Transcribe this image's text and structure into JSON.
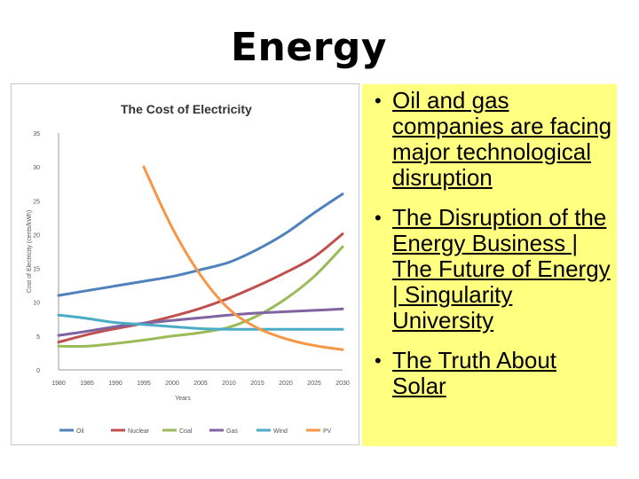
{
  "slide": {
    "title": "Energy",
    "bullets": [
      {
        "text": "Oil and gas companies are facing major technological disruption"
      },
      {
        "text": "The Disruption of the Energy Business | The Future of Energy | Singularity University"
      },
      {
        "text": "The Truth About Solar"
      }
    ]
  },
  "chart_data": {
    "type": "line",
    "title": "The Cost of Electricity",
    "xlabel": "Years",
    "ylabel": "Cost of Electricity (cents/kWh)",
    "x": [
      1980,
      1985,
      1990,
      1995,
      2000,
      2005,
      2010,
      2015,
      2020,
      2025,
      2030
    ],
    "ylim": [
      0,
      35
    ],
    "yticks": [
      0,
      5,
      10,
      15,
      20,
      25,
      30,
      35
    ],
    "grid": false,
    "legend_position": "bottom",
    "series": [
      {
        "name": "Oil",
        "color": "#4f81bd",
        "x": [
          1980,
          1985,
          1990,
          1995,
          2000,
          2005,
          2010,
          2015,
          2020,
          2025,
          2030
        ],
        "values": [
          11,
          11.7,
          12.4,
          13.1,
          13.8,
          14.8,
          15.9,
          17.8,
          20.2,
          23.2,
          26
        ]
      },
      {
        "name": "Nuclear",
        "color": "#c0504d",
        "x": [
          1980,
          1985,
          1990,
          1995,
          2000,
          2005,
          2010,
          2015,
          2020,
          2025,
          2030
        ],
        "values": [
          4.1,
          5.2,
          6.1,
          6.9,
          7.9,
          9.1,
          10.6,
          12.4,
          14.4,
          16.7,
          20.1
        ]
      },
      {
        "name": "Coal",
        "color": "#9bbb59",
        "x": [
          1980,
          1985,
          1990,
          1995,
          2000,
          2005,
          2010,
          2015,
          2020,
          2025,
          2030
        ],
        "values": [
          3.5,
          3.5,
          3.9,
          4.4,
          5.0,
          5.5,
          6.3,
          8.0,
          10.5,
          13.8,
          18.2
        ]
      },
      {
        "name": "Gas",
        "color": "#8064a2",
        "x": [
          1980,
          1985,
          1990,
          1995,
          2000,
          2005,
          2010,
          2015,
          2020,
          2025,
          2030
        ],
        "values": [
          5.1,
          5.7,
          6.4,
          6.9,
          7.3,
          7.7,
          8.1,
          8.4,
          8.6,
          8.8,
          9.0
        ]
      },
      {
        "name": "Wind",
        "color": "#4bacc6",
        "x": [
          1980,
          1985,
          1990,
          1995,
          2000,
          2005,
          2010,
          2015,
          2020,
          2025,
          2030
        ],
        "values": [
          8.1,
          7.6,
          7.0,
          6.7,
          6.4,
          6.1,
          6.0,
          6.0,
          6.0,
          6.0,
          6.0
        ]
      },
      {
        "name": "PV",
        "color": "#f79646",
        "x": [
          1995,
          2000,
          2005,
          2010,
          2015,
          2020,
          2025,
          2030
        ],
        "values": [
          30,
          21,
          14,
          9,
          6.2,
          4.6,
          3.6,
          3.0
        ]
      }
    ]
  }
}
